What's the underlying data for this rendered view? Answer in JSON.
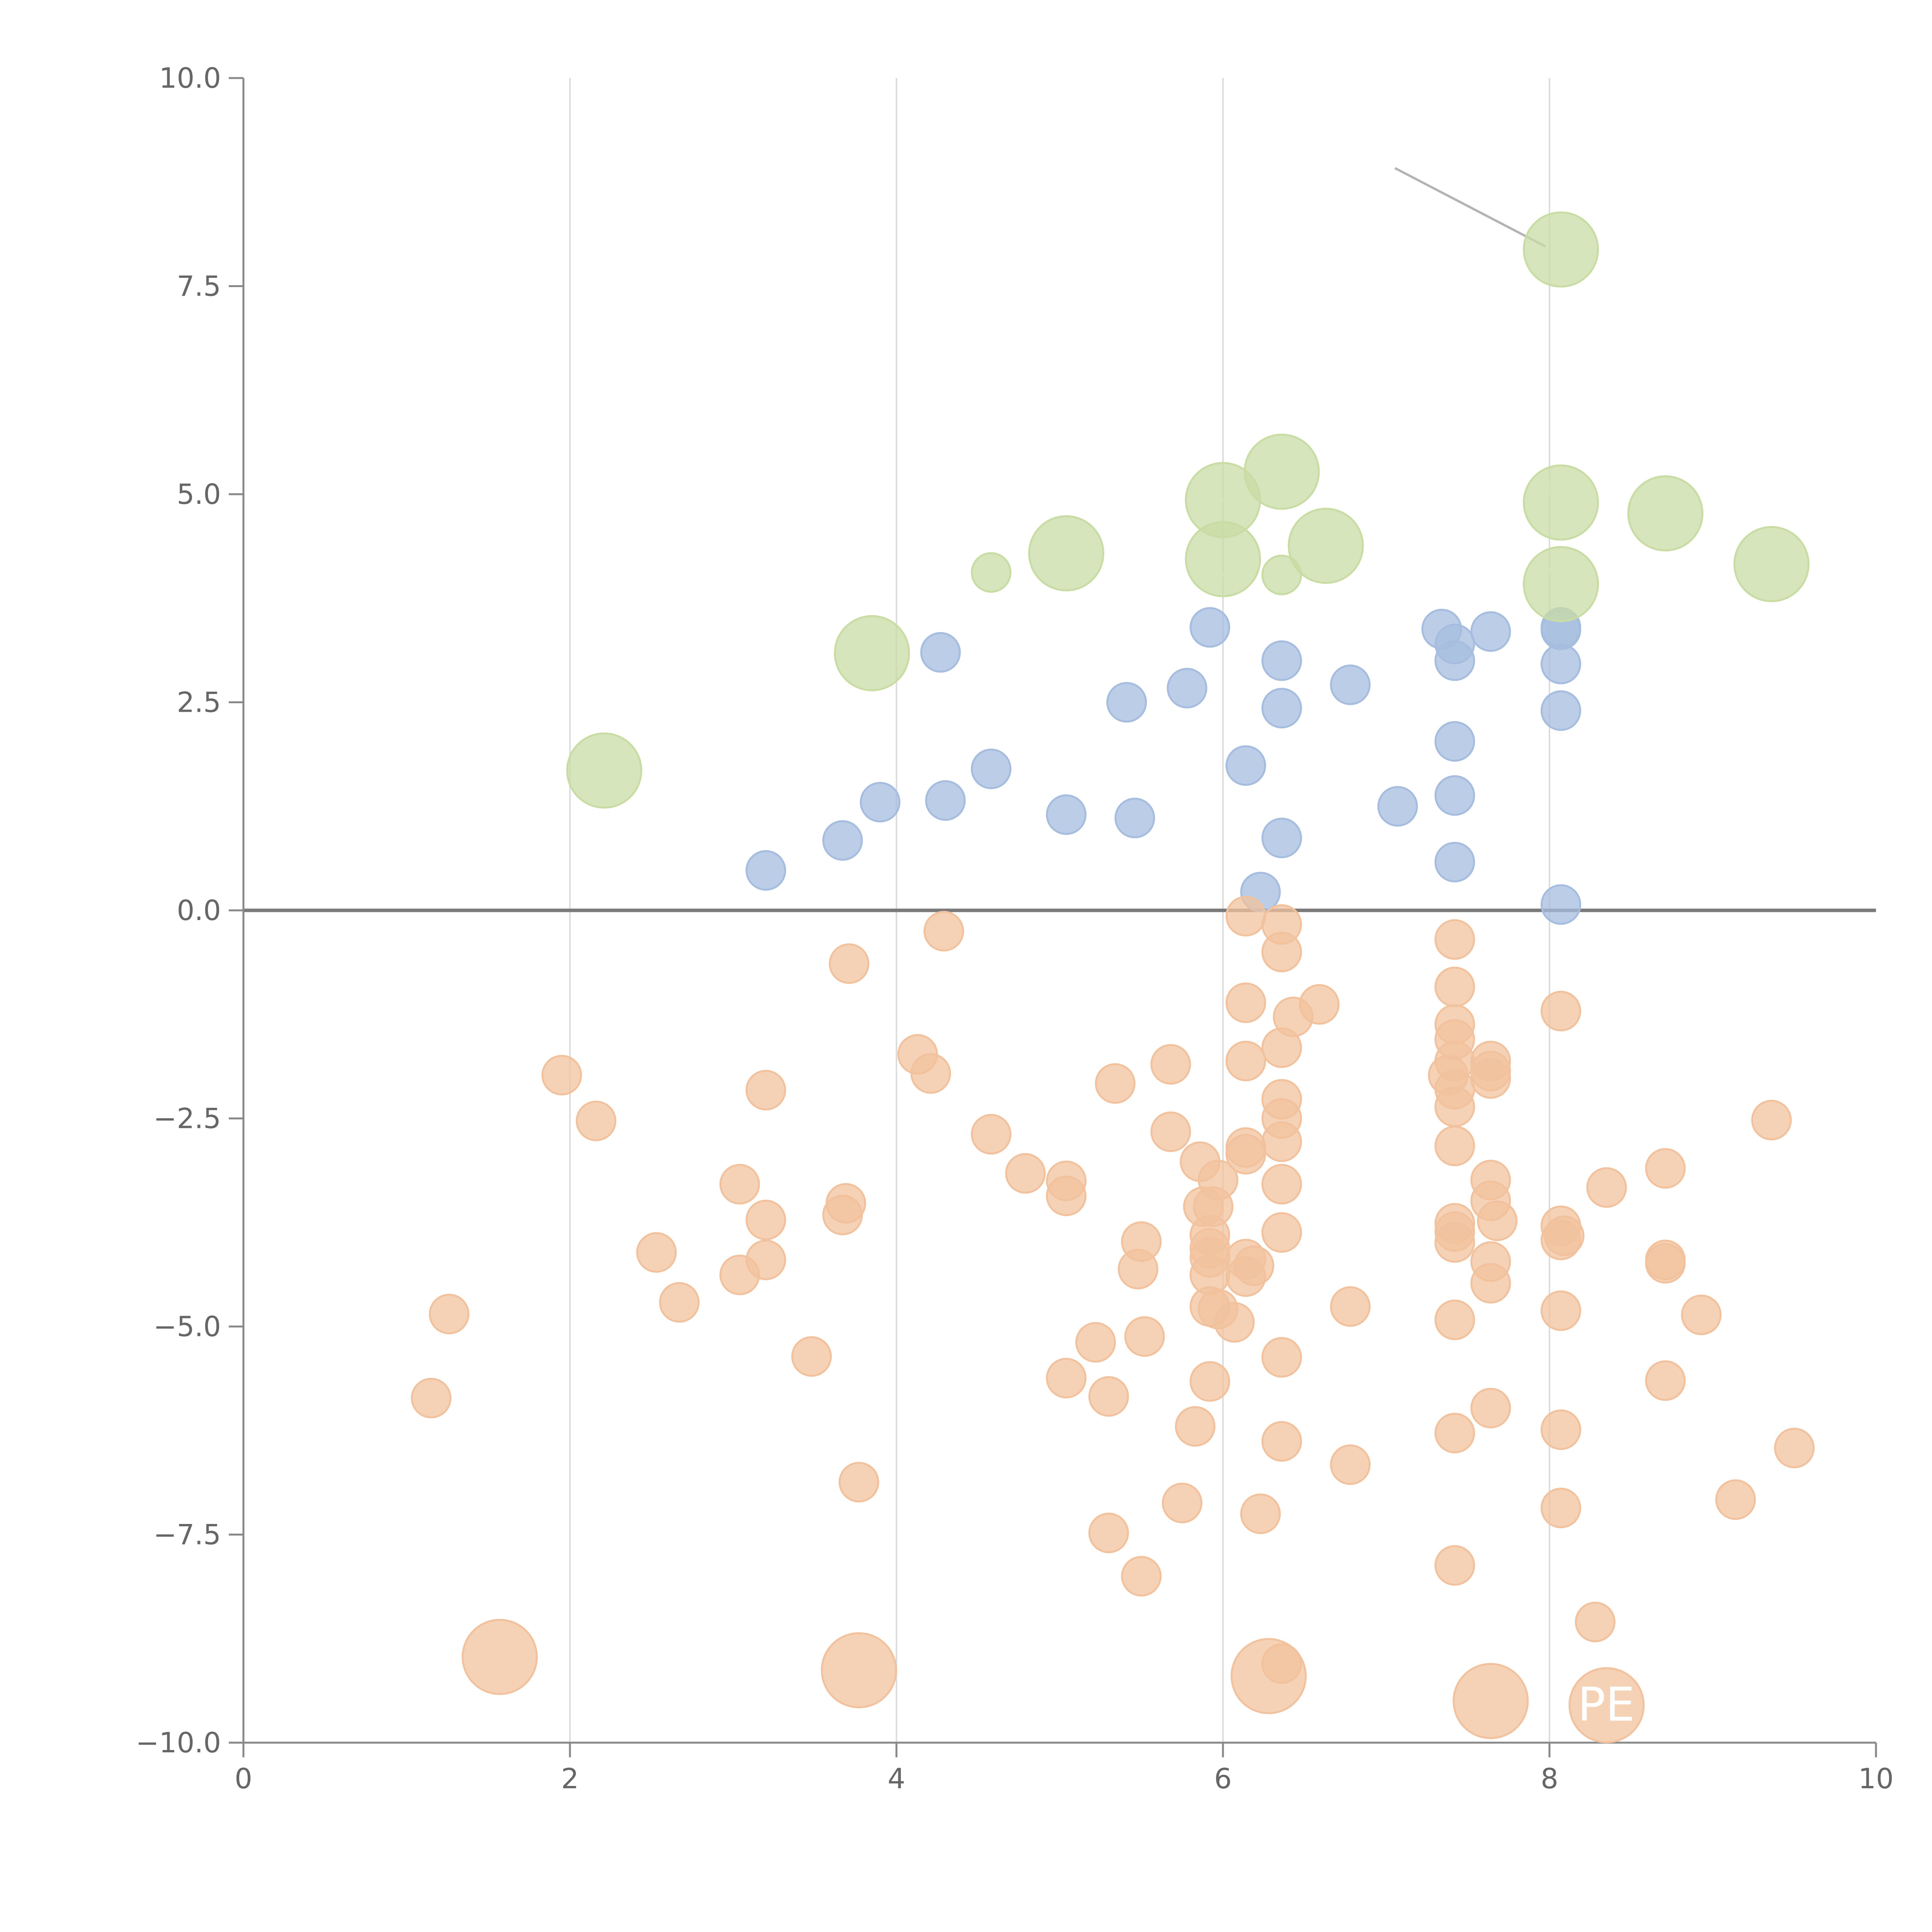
{
  "chart_data": {
    "type": "scatter",
    "title": "",
    "xlabel": "",
    "ylabel": "",
    "xlim": [
      0,
      10
    ],
    "ylim": [
      -10,
      10
    ],
    "x_ticks": [
      {
        "value": 0,
        "label": "0"
      },
      {
        "value": 2,
        "label": "2"
      },
      {
        "value": 4,
        "label": "4"
      },
      {
        "value": 6,
        "label": "6"
      },
      {
        "value": 8,
        "label": "8"
      },
      {
        "value": 10,
        "label": "10"
      }
    ],
    "y_ticks": [
      {
        "value": 10,
        "label": "10.0"
      },
      {
        "value": 7.5,
        "label": "7.5"
      },
      {
        "value": 5,
        "label": "5.0"
      },
      {
        "value": 2.5,
        "label": "2.5"
      },
      {
        "value": 0,
        "label": "0.0"
      },
      {
        "value": -2.5,
        "label": "−2.5"
      },
      {
        "value": -5,
        "label": "−5.0"
      },
      {
        "value": -7.5,
        "label": "−7.5"
      },
      {
        "value": -10,
        "label": "−10.0"
      }
    ],
    "grid": {
      "vertical": true,
      "horizontal": false
    },
    "reference_line_y": 0,
    "legend": "none",
    "series": [
      {
        "color": "#a6bddf",
        "points": [
          {
            "x": 3.2,
            "y": 0.48
          },
          {
            "x": 3.67,
            "y": 0.84
          },
          {
            "x": 3.9,
            "y": 1.3
          },
          {
            "x": 4.3,
            "y": 1.32
          },
          {
            "x": 4.27,
            "y": 3.1
          },
          {
            "x": 4.58,
            "y": 1.7
          },
          {
            "x": 5.04,
            "y": 1.15
          },
          {
            "x": 5.41,
            "y": 2.5
          },
          {
            "x": 5.46,
            "y": 1.11
          },
          {
            "x": 5.78,
            "y": 2.67
          },
          {
            "x": 5.92,
            "y": 3.4
          },
          {
            "x": 6.14,
            "y": 1.74
          },
          {
            "x": 6.23,
            "y": 0.22
          },
          {
            "x": 6.36,
            "y": 3.0
          },
          {
            "x": 6.36,
            "y": 2.43
          },
          {
            "x": 6.36,
            "y": 0.87
          },
          {
            "x": 6.78,
            "y": 2.71
          },
          {
            "x": 7.07,
            "y": 1.25
          },
          {
            "x": 7.34,
            "y": 3.38
          },
          {
            "x": 7.42,
            "y": 3.0
          },
          {
            "x": 7.42,
            "y": 3.2
          },
          {
            "x": 7.42,
            "y": 2.03
          },
          {
            "x": 7.42,
            "y": 1.38
          },
          {
            "x": 7.42,
            "y": 0.58
          },
          {
            "x": 7.64,
            "y": 3.35
          },
          {
            "x": 8.07,
            "y": 3.37
          },
          {
            "x": 8.07,
            "y": 3.4
          },
          {
            "x": 8.07,
            "y": 2.96
          },
          {
            "x": 8.07,
            "y": 2.4
          },
          {
            "x": 8.07,
            "y": 0.07
          }
        ]
      },
      {
        "color": "#c8dca4",
        "points": [
          {
            "x": 2.21,
            "y": 1.68,
            "size": "large"
          },
          {
            "x": 3.85,
            "y": 3.09,
            "size": "large"
          },
          {
            "x": 4.58,
            "y": 4.06
          },
          {
            "x": 5.04,
            "y": 4.29,
            "size": "large"
          },
          {
            "x": 6.0,
            "y": 4.93,
            "size": "large"
          },
          {
            "x": 6.0,
            "y": 4.22,
            "size": "large"
          },
          {
            "x": 6.36,
            "y": 5.27,
            "size": "large"
          },
          {
            "x": 6.36,
            "y": 4.03
          },
          {
            "x": 6.63,
            "y": 4.38,
            "size": "large"
          },
          {
            "x": 8.07,
            "y": 7.94,
            "size": "large"
          },
          {
            "x": 8.07,
            "y": 4.9,
            "size": "large"
          },
          {
            "x": 8.07,
            "y": 3.92,
            "size": "large"
          },
          {
            "x": 8.71,
            "y": 4.77,
            "size": "large"
          },
          {
            "x": 9.36,
            "y": 4.16,
            "size": "large"
          }
        ]
      },
      {
        "color": "#f1c29d",
        "points": [
          {
            "x": 1.15,
            "y": -5.86
          },
          {
            "x": 1.26,
            "y": -4.85
          },
          {
            "x": 1.95,
            "y": -1.98
          },
          {
            "x": 2.16,
            "y": -2.53
          },
          {
            "x": 2.53,
            "y": -4.11
          },
          {
            "x": 2.67,
            "y": -4.71
          },
          {
            "x": 3.04,
            "y": -3.29
          },
          {
            "x": 3.04,
            "y": -4.38
          },
          {
            "x": 3.2,
            "y": -2.16
          },
          {
            "x": 3.2,
            "y": -3.72
          },
          {
            "x": 3.2,
            "y": -4.2
          },
          {
            "x": 3.48,
            "y": -5.36
          },
          {
            "x": 3.67,
            "y": -3.66
          },
          {
            "x": 3.69,
            "y": -3.52
          },
          {
            "x": 3.71,
            "y": -0.64
          },
          {
            "x": 3.77,
            "y": -6.87
          },
          {
            "x": 4.13,
            "y": -1.73
          },
          {
            "x": 4.21,
            "y": -1.96
          },
          {
            "x": 4.29,
            "y": -0.25
          },
          {
            "x": 4.58,
            "y": -2.69
          },
          {
            "x": 4.79,
            "y": -3.16
          },
          {
            "x": 5.04,
            "y": -3.25
          },
          {
            "x": 5.04,
            "y": -3.43
          },
          {
            "x": 5.04,
            "y": -5.62
          },
          {
            "x": 5.22,
            "y": -5.19
          },
          {
            "x": 5.3,
            "y": -5.84
          },
          {
            "x": 5.3,
            "y": -7.48
          },
          {
            "x": 5.34,
            "y": -2.08
          },
          {
            "x": 5.48,
            "y": -4.31
          },
          {
            "x": 5.5,
            "y": -3.98
          },
          {
            "x": 5.5,
            "y": -8.0
          },
          {
            "x": 5.52,
            "y": -5.12
          },
          {
            "x": 5.68,
            "y": -1.85
          },
          {
            "x": 5.68,
            "y": -2.66
          },
          {
            "x": 5.75,
            "y": -7.12
          },
          {
            "x": 5.83,
            "y": -6.2
          },
          {
            "x": 5.86,
            "y": -3.02
          },
          {
            "x": 5.88,
            "y": -3.56
          },
          {
            "x": 5.92,
            "y": -3.9
          },
          {
            "x": 5.92,
            "y": -4.06
          },
          {
            "x": 5.92,
            "y": -4.17
          },
          {
            "x": 5.92,
            "y": -4.38
          },
          {
            "x": 5.92,
            "y": -4.76
          },
          {
            "x": 5.92,
            "y": -5.66
          },
          {
            "x": 5.94,
            "y": -3.56
          },
          {
            "x": 5.97,
            "y": -3.24
          },
          {
            "x": 5.97,
            "y": -4.79
          },
          {
            "x": 6.07,
            "y": -4.95
          },
          {
            "x": 6.14,
            "y": -0.07
          },
          {
            "x": 6.14,
            "y": -1.11
          },
          {
            "x": 6.14,
            "y": -1.81
          },
          {
            "x": 6.14,
            "y": -2.85
          },
          {
            "x": 6.14,
            "y": -2.93
          },
          {
            "x": 6.14,
            "y": -4.19
          },
          {
            "x": 6.14,
            "y": -4.4
          },
          {
            "x": 6.19,
            "y": -4.27
          },
          {
            "x": 6.23,
            "y": -7.25
          },
          {
            "x": 6.36,
            "y": -0.17
          },
          {
            "x": 6.36,
            "y": -0.5
          },
          {
            "x": 6.36,
            "y": -1.65
          },
          {
            "x": 6.36,
            "y": -2.27
          },
          {
            "x": 6.36,
            "y": -2.5
          },
          {
            "x": 6.36,
            "y": -2.78
          },
          {
            "x": 6.36,
            "y": -3.29
          },
          {
            "x": 6.36,
            "y": -3.87
          },
          {
            "x": 6.36,
            "y": -5.37
          },
          {
            "x": 6.36,
            "y": -6.38
          },
          {
            "x": 6.36,
            "y": -9.05
          },
          {
            "x": 6.43,
            "y": -1.28
          },
          {
            "x": 6.59,
            "y": -1.13
          },
          {
            "x": 6.78,
            "y": -4.76
          },
          {
            "x": 6.78,
            "y": -6.66
          },
          {
            "x": 7.42,
            "y": -0.35
          },
          {
            "x": 7.42,
            "y": -0.92
          },
          {
            "x": 7.42,
            "y": -1.37
          },
          {
            "x": 7.42,
            "y": -1.55
          },
          {
            "x": 7.42,
            "y": -1.81
          },
          {
            "x": 7.38,
            "y": -1.98
          },
          {
            "x": 7.42,
            "y": -2.15
          },
          {
            "x": 7.42,
            "y": -2.36
          },
          {
            "x": 7.42,
            "y": -2.83
          },
          {
            "x": 7.42,
            "y": -3.76
          },
          {
            "x": 7.42,
            "y": -3.86
          },
          {
            "x": 7.42,
            "y": -3.99
          },
          {
            "x": 7.42,
            "y": -4.92
          },
          {
            "x": 7.42,
            "y": -6.28
          },
          {
            "x": 7.42,
            "y": -7.87
          },
          {
            "x": 7.64,
            "y": -1.81
          },
          {
            "x": 7.64,
            "y": -1.93
          },
          {
            "x": 7.64,
            "y": -2.02
          },
          {
            "x": 7.64,
            "y": -3.24
          },
          {
            "x": 7.64,
            "y": -3.49
          },
          {
            "x": 7.64,
            "y": -4.22
          },
          {
            "x": 7.64,
            "y": -4.48
          },
          {
            "x": 7.64,
            "y": -5.98
          },
          {
            "x": 7.68,
            "y": -3.73
          },
          {
            "x": 8.07,
            "y": -1.21
          },
          {
            "x": 8.07,
            "y": -3.79
          },
          {
            "x": 8.07,
            "y": -3.96
          },
          {
            "x": 8.09,
            "y": -3.91
          },
          {
            "x": 8.07,
            "y": -4.81
          },
          {
            "x": 8.07,
            "y": -6.24
          },
          {
            "x": 8.07,
            "y": -7.18
          },
          {
            "x": 8.28,
            "y": -8.55
          },
          {
            "x": 8.35,
            "y": -3.33
          },
          {
            "x": 8.71,
            "y": -3.1
          },
          {
            "x": 8.71,
            "y": -4.2
          },
          {
            "x": 8.71,
            "y": -4.24
          },
          {
            "x": 8.71,
            "y": -5.65
          },
          {
            "x": 8.93,
            "y": -4.86
          },
          {
            "x": 9.14,
            "y": -7.08
          },
          {
            "x": 9.36,
            "y": -2.52
          },
          {
            "x": 9.5,
            "y": -6.46
          },
          {
            "x": 1.57,
            "y": -8.97,
            "size": "large"
          },
          {
            "x": 3.77,
            "y": -9.13,
            "size": "large"
          },
          {
            "x": 6.28,
            "y": -9.2,
            "size": "large"
          },
          {
            "x": 7.64,
            "y": -9.5,
            "size": "large"
          },
          {
            "x": 8.35,
            "y": -9.55,
            "size": "large"
          }
        ]
      }
    ],
    "annotations": [
      {
        "text": "PE",
        "x": 8.35,
        "y": -9.55,
        "color": "#ffffff"
      }
    ]
  }
}
